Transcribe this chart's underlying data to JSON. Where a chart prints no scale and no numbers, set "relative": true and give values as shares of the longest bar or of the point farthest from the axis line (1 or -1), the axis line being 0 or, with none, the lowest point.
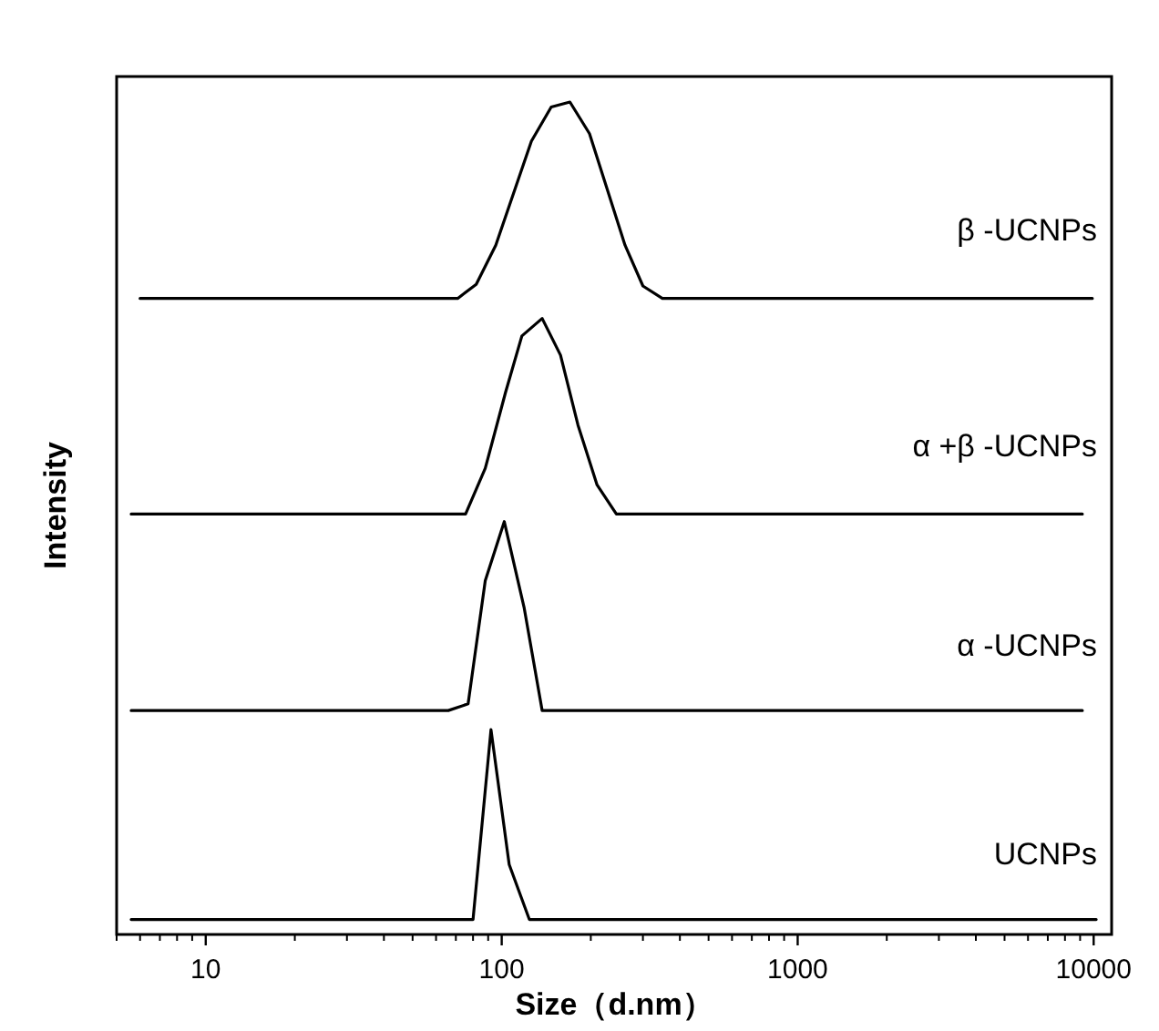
{
  "chart_data": {
    "type": "line",
    "relative": true,
    "log": "x",
    "xlabel": "Size（d.nm）",
    "ylabel": "Intensity",
    "xlim": [
      5,
      11500
    ],
    "xticks": [
      10,
      100,
      1000,
      10000
    ],
    "series": [
      {
        "name": "UCNPs",
        "color": "#000000",
        "x": [
          5.6,
          80,
          92,
          106,
          124,
          10200
        ],
        "values": [
          0.018,
          0.018,
          0.246,
          0.084,
          0.018,
          0.018
        ]
      },
      {
        "name": "α -UCNPs",
        "color": "#000000",
        "x": [
          5.6,
          66,
          77,
          88,
          102,
          119,
          137,
          9160
        ],
        "values": [
          0.269,
          0.269,
          0.277,
          0.425,
          0.496,
          0.393,
          0.269,
          0.269
        ]
      },
      {
        "name": "α +β -UCNPs",
        "color": "#000000",
        "x": [
          5.6,
          75.5,
          88,
          103,
          117,
          137,
          158,
          181,
          210,
          244,
          9160
        ],
        "values": [
          0.505,
          0.505,
          0.56,
          0.651,
          0.719,
          0.74,
          0.696,
          0.612,
          0.54,
          0.505,
          0.505
        ]
      },
      {
        "name": "β -UCNPs",
        "color": "#000000",
        "x": [
          6.0,
          71,
          82,
          95.5,
          126,
          147,
          170,
          198,
          261,
          300,
          349,
          9900
        ],
        "values": [
          0.764,
          0.764,
          0.781,
          0.828,
          0.953,
          0.994,
          1.0,
          0.962,
          0.828,
          0.779,
          0.764,
          0.764
        ]
      }
    ]
  }
}
